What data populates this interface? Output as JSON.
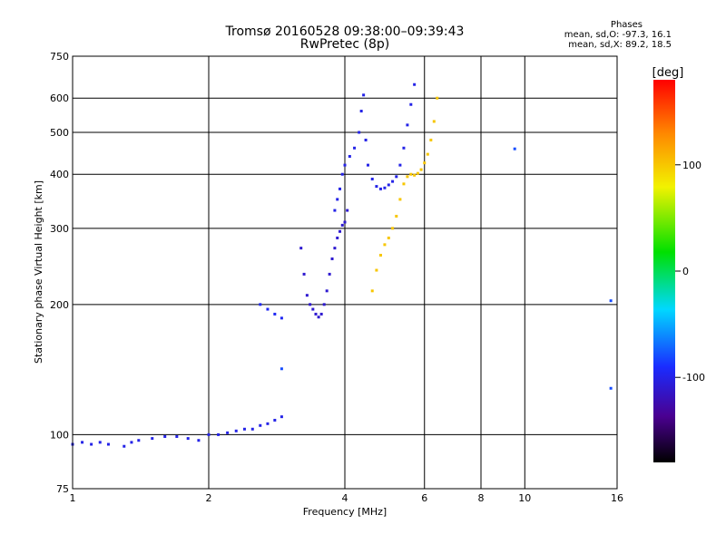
{
  "title": "Tromsø 20160528 09:38:00–09:39:43",
  "subtitle": "RwPretec (8p)",
  "stats": {
    "heading": "Phases",
    "line_o": "mean, sd,O: -97.3, 16.1",
    "line_x": "mean, sd,X:  89.2, 18.5"
  },
  "colorbar": {
    "title": "[deg]",
    "range": [
      -180,
      180
    ],
    "tick_labels": [
      "100",
      "0",
      "-100"
    ],
    "tick_values": [
      100,
      0,
      -100
    ]
  },
  "chart_data": {
    "type": "scatter",
    "xlabel": "Frequency [MHz]",
    "ylabel": "Stationary phase Virtual Height [km]",
    "xscale": "log",
    "yscale": "log",
    "xlim": [
      1,
      16
    ],
    "ylim": [
      75,
      750
    ],
    "x_ticks": [
      1,
      2,
      4,
      6,
      8,
      10,
      16
    ],
    "x_tick_labels": [
      "1",
      "2",
      "4",
      "6",
      "8",
      "10",
      "16"
    ],
    "y_ticks": [
      75,
      100,
      200,
      300,
      400,
      500,
      600,
      750
    ],
    "y_tick_labels": [
      "75",
      "100",
      "200",
      "300",
      "400",
      "500",
      "600",
      "750"
    ],
    "grid": true,
    "colors": {
      "o_mode": "#1a2cff",
      "x_mode": "#f2e600",
      "violet": "#4a10b0",
      "teal": "#00b4c8"
    },
    "series": [
      {
        "mode": "O",
        "phase": -100,
        "x": [
          1.0,
          1.05,
          1.1,
          1.15,
          1.2,
          1.3,
          1.35,
          1.4,
          1.5,
          1.6,
          1.7,
          1.8,
          1.9,
          2.0,
          2.1,
          2.2,
          2.3,
          2.4,
          2.5,
          2.6,
          2.7,
          2.8,
          2.9
        ],
        "y": [
          95,
          96,
          95,
          96,
          95,
          94,
          96,
          97,
          98,
          99,
          99,
          98,
          97,
          100,
          100,
          101,
          102,
          103,
          103,
          105,
          106,
          108,
          110
        ]
      },
      {
        "mode": "O",
        "phase": -95,
        "x": [
          2.6,
          2.7,
          2.8,
          2.9
        ],
        "y": [
          200,
          195,
          190,
          186
        ]
      },
      {
        "mode": "O",
        "phase": -110,
        "x": [
          3.2,
          3.25,
          3.3,
          3.35,
          3.4,
          3.45,
          3.5,
          3.55,
          3.6,
          3.65,
          3.7,
          3.75,
          3.8,
          3.85,
          3.9,
          3.95,
          4.0,
          4.05
        ],
        "y": [
          270,
          235,
          210,
          200,
          195,
          190,
          187,
          190,
          200,
          215,
          235,
          255,
          270,
          285,
          295,
          305,
          310,
          330
        ]
      },
      {
        "mode": "O",
        "phase": -100,
        "x": [
          3.8,
          3.85,
          3.9,
          3.95,
          4.0,
          4.1,
          4.2,
          4.3,
          4.35,
          4.4,
          4.45,
          4.5,
          4.6,
          4.7,
          4.8,
          4.9,
          5.0,
          5.1,
          5.2,
          5.3,
          5.4,
          5.5,
          5.6,
          5.7
        ],
        "y": [
          330,
          350,
          370,
          400,
          420,
          440,
          460,
          500,
          560,
          610,
          480,
          420,
          390,
          375,
          370,
          372,
          378,
          385,
          395,
          420,
          460,
          520,
          580,
          645
        ]
      },
      {
        "mode": "X",
        "phase": 100,
        "x": [
          4.6,
          4.7,
          4.8,
          4.9,
          5.0,
          5.1,
          5.2,
          5.3,
          5.4,
          5.5,
          5.6,
          5.7,
          5.8,
          5.9,
          6.0,
          6.1,
          6.2,
          6.3,
          6.4
        ],
        "y": [
          215,
          240,
          260,
          275,
          285,
          300,
          320,
          350,
          380,
          395,
          400,
          398,
          402,
          410,
          425,
          445,
          480,
          530,
          600
        ]
      },
      {
        "mode": "O",
        "phase": -80,
        "x": [
          9.5,
          15.5,
          15.5,
          2.9
        ],
        "y": [
          458,
          204,
          128,
          142
        ]
      }
    ]
  }
}
